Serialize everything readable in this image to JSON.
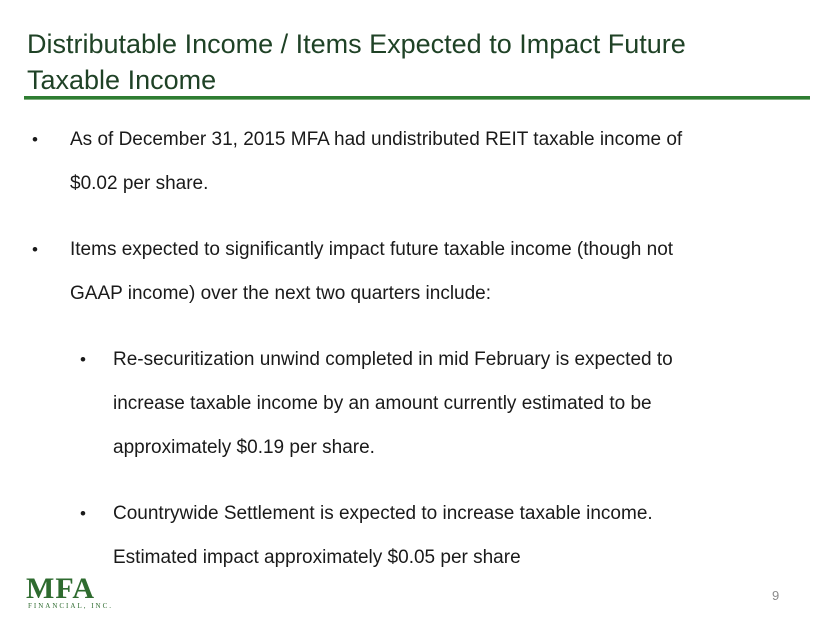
{
  "slide": {
    "title_line1": "Distributable Income / Items Expected to Impact Future",
    "title_line2": "Taxable Income",
    "bullets": [
      {
        "line1": "As of December 31, 2015 MFA had undistributed REIT taxable income of",
        "line2": "$0.02 per share."
      },
      {
        "line1": "Items expected to significantly impact future taxable income (though not",
        "line2": "GAAP income) over the next two quarters include:"
      }
    ],
    "sub_bullets": [
      {
        "line1": "Re-securitization unwind completed in mid February is expected to",
        "line2": "increase taxable income by an amount currently estimated to be",
        "line3": "approximately $0.19 per share."
      },
      {
        "line1": "Countrywide Settlement is expected to increase taxable income.",
        "line2": "Estimated impact approximately $0.05 per share"
      }
    ],
    "bullet_glyph": "•",
    "page_number": "9",
    "logo": {
      "mark": "MFA",
      "sub": "FINANCIAL, INC."
    },
    "colors": {
      "title": "#1f4226",
      "rule": "#2e7d32",
      "logo": "#2e6b2f"
    }
  }
}
